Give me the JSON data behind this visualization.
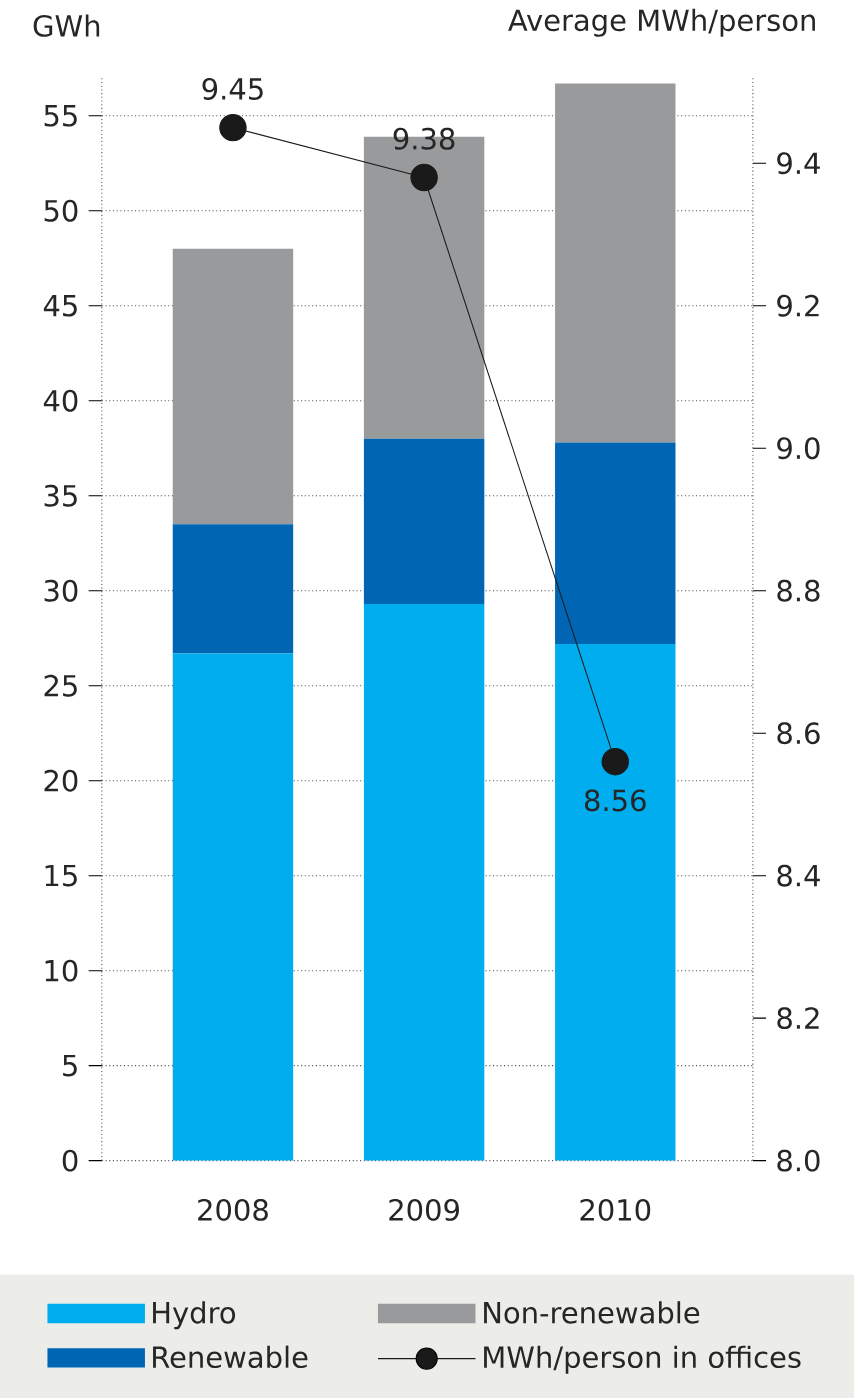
{
  "chart_data": {
    "type": "bar",
    "stacked": true,
    "ylabel": "GWh",
    "y2label": "Average MWh/person",
    "categories": [
      "2008",
      "2009",
      "2010"
    ],
    "series": [
      {
        "name": "Hydro",
        "color": "#00aeef",
        "values": [
          26.7,
          29.3,
          27.2
        ]
      },
      {
        "name": "Renewable",
        "color": "#0066b3",
        "values": [
          6.8,
          8.7,
          10.6
        ]
      },
      {
        "name": "Non-renewable",
        "color": "#999a9c",
        "values": [
          14.5,
          15.9,
          18.9
        ]
      },
      {
        "name": "MWh/person in offices",
        "type": "line",
        "axis": "y2",
        "color": "#1a1a1a",
        "marker": "circle",
        "values": [
          9.45,
          9.38,
          8.56
        ],
        "value_labels": [
          "9.45",
          "9.38",
          "8.56"
        ]
      }
    ],
    "ylim": [
      0,
      57
    ],
    "yticks": [
      0,
      5,
      10,
      15,
      20,
      25,
      30,
      35,
      40,
      45,
      50,
      55
    ],
    "y2lim": [
      8.0,
      9.52
    ],
    "y2ticks": [
      {
        "value": 8.0,
        "label": "8.0"
      },
      8.2,
      8.4,
      8.6,
      8.8,
      {
        "value": 9.0,
        "label": "9.0"
      },
      9.2,
      9.4
    ],
    "grid": "y",
    "legend": "bottom"
  }
}
